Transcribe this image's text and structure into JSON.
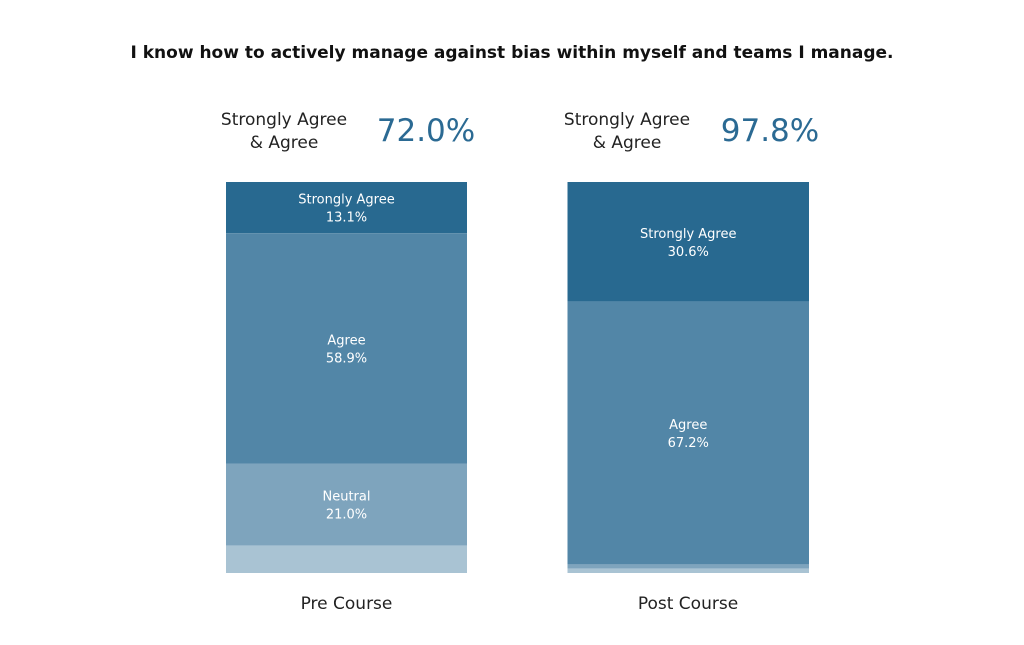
{
  "chart_data": {
    "type": "bar",
    "stacked": true,
    "title": "I know how to actively manage against bias within myself and teams I manage.",
    "categories": [
      "Pre Course",
      "Post Course"
    ],
    "series": [
      {
        "name": "Strongly Agree",
        "values": [
          13.1,
          30.6
        ]
      },
      {
        "name": "Agree",
        "values": [
          58.9,
          67.2
        ]
      },
      {
        "name": "Neutral",
        "values": [
          21.0,
          1.1
        ]
      },
      {
        "name": "",
        "values": [
          7.0,
          1.1
        ]
      }
    ],
    "ylim": [
      0,
      100
    ],
    "grid": false,
    "summary": [
      {
        "label_line1": "Strongly Agree",
        "label_line2": "& Agree",
        "value": "72.0%"
      },
      {
        "label_line1": "Strongly Agree",
        "label_line2": "& Agree",
        "value": "97.8%"
      }
    ],
    "segment_labels": [
      [
        {
          "name": "Strongly Agree",
          "value": "13.1%"
        },
        {
          "name": "Agree",
          "value": "58.9%"
        },
        {
          "name": "Neutral",
          "value": "21.0%"
        },
        null
      ],
      [
        {
          "name": "Strongly Agree",
          "value": "30.6%"
        },
        {
          "name": "Agree",
          "value": "67.2%"
        },
        null,
        null
      ]
    ],
    "colors": {
      "strongly_agree": "#286990",
      "agree": "#5286a7",
      "neutral": "#7ea4bd",
      "other": "#a9c3d3",
      "accent": "#2b6a93"
    }
  }
}
